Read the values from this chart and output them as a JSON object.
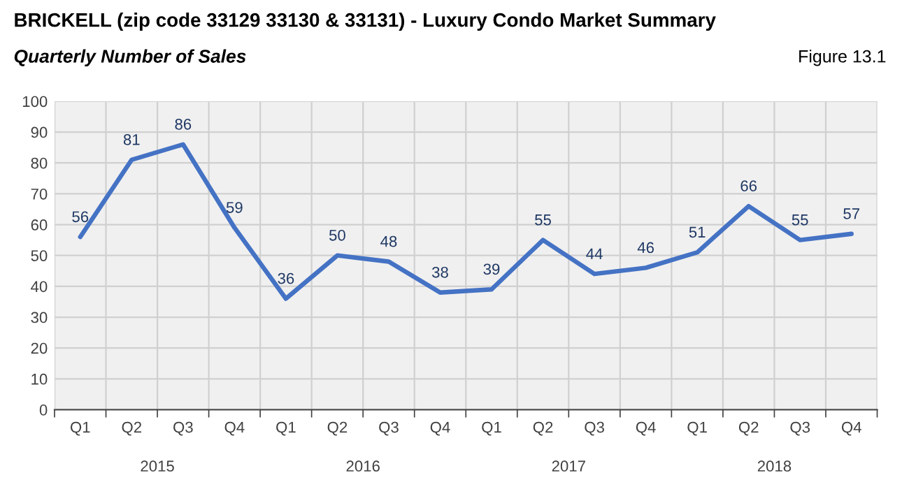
{
  "chart_data": {
    "type": "line",
    "title": "BRICKELL (zip code 33129 33130 & 33131) - Luxury Condo Market Summary",
    "subtitle": "Quarterly Number of Sales",
    "annotations": [
      "Figure 13.1",
      "2015",
      "2016",
      "2017",
      "2018"
    ],
    "categories": [
      "Q1",
      "Q2",
      "Q3",
      "Q4",
      "Q1",
      "Q2",
      "Q3",
      "Q4",
      "Q1",
      "Q2",
      "Q3",
      "Q4",
      "Q1",
      "Q2",
      "Q3",
      "Q4"
    ],
    "series": [
      {
        "color": "#4472c4",
        "values": [
          56,
          81,
          86,
          59,
          36,
          50,
          48,
          38,
          39,
          55,
          44,
          46,
          51,
          66,
          55,
          57
        ]
      }
    ],
    "ylim": [
      0,
      100
    ],
    "yticks": [
      0,
      10,
      20,
      30,
      40,
      50,
      60,
      70,
      80,
      90,
      100
    ],
    "grid": true,
    "data_labels": true,
    "marker": "none",
    "line_style": "solid"
  }
}
